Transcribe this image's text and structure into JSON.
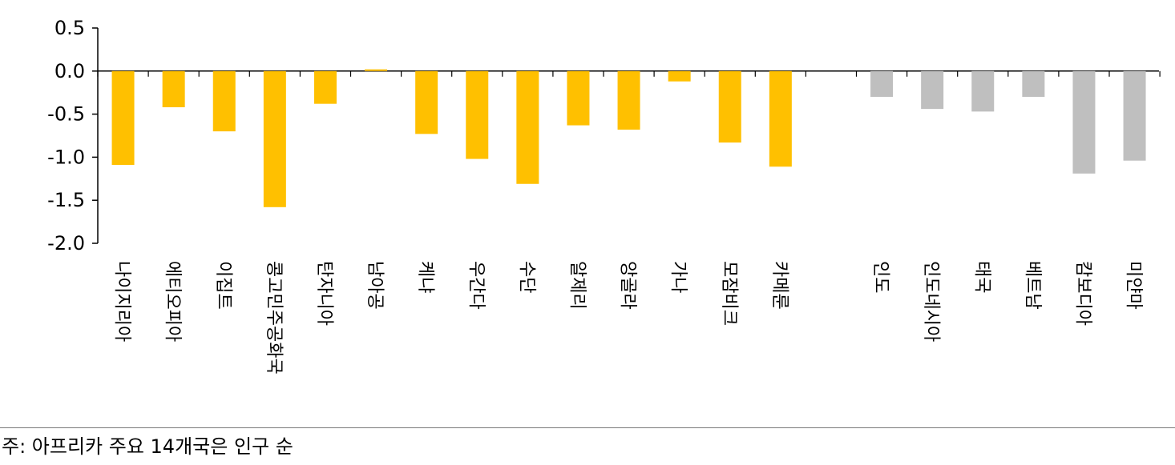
{
  "chart_data": {
    "type": "bar",
    "title": "",
    "xlabel": "",
    "ylabel": "",
    "ylim": [
      -2.0,
      0.5
    ],
    "yticks": [
      0.5,
      0.0,
      -0.5,
      -1.0,
      -1.5,
      -2.0
    ],
    "grid": false,
    "legend": "none",
    "groups": [
      {
        "color": "#FFC000",
        "categories": [
          "나이지리아",
          "에티오피아",
          "이집트",
          "콩고민주공화국",
          "탄자니아",
          "남아공",
          "케냐",
          "우간다",
          "수단",
          "알제리",
          "앙골라",
          "가나",
          "모잠비크",
          "카메룬"
        ],
        "values": [
          -1.09,
          -0.42,
          -0.7,
          -1.58,
          -0.38,
          0.02,
          -0.73,
          -1.02,
          -1.31,
          -0.63,
          -0.68,
          -0.12,
          -0.83,
          -1.11
        ]
      },
      {
        "color": "#BFBFBF",
        "categories": [
          "인도",
          "인도네시아",
          "태국",
          "베트남",
          "캄보디아",
          "미얀마"
        ],
        "values": [
          -0.3,
          -0.44,
          -0.47,
          -0.3,
          -1.19,
          -1.04
        ]
      }
    ]
  },
  "footnote": "주: 아프리카 주요 14개국은 인구 순"
}
